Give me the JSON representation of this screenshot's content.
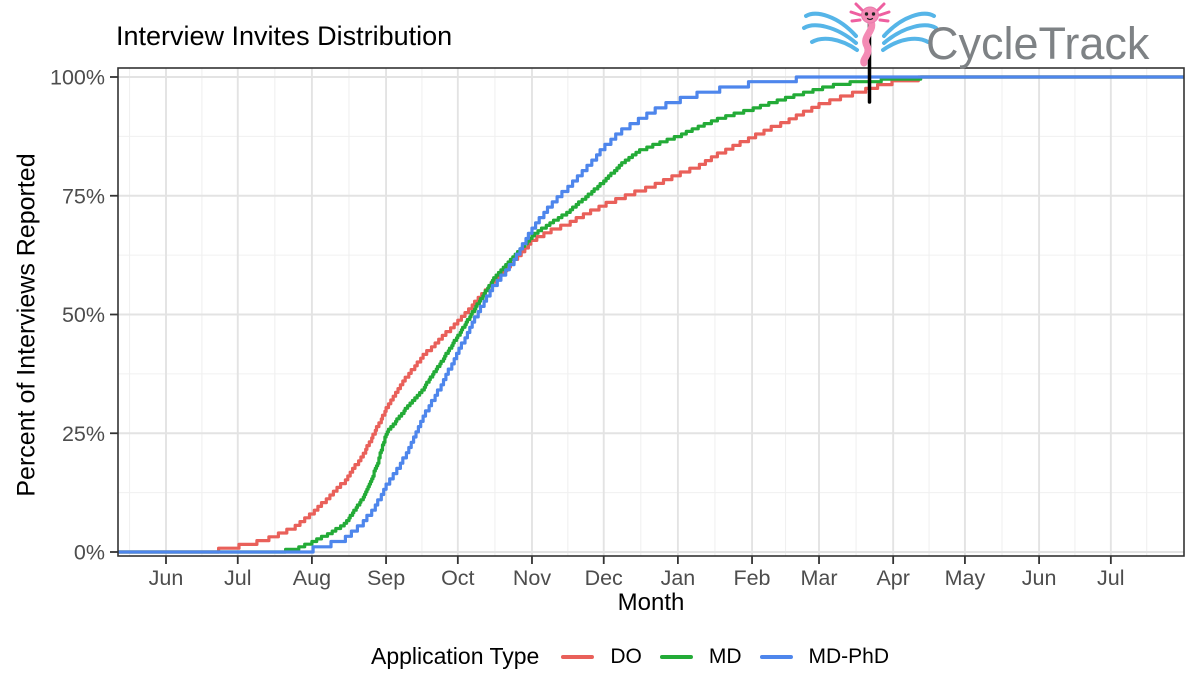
{
  "title": "Interview Invites Distribution",
  "logo": {
    "brand": "CycleTrack",
    "mascot": "axolotl-caduceus"
  },
  "chart_data": {
    "type": "line",
    "style": "ecdf-cumulative-step",
    "title": "Interview Invites Distribution",
    "xlabel": "Month",
    "ylabel": "Percent of Interviews Reported",
    "x_unit": "days_since_Jun_1",
    "x_ticks": [
      "Jun",
      "Jul",
      "Aug",
      "Sep",
      "Oct",
      "Nov",
      "Dec",
      "Jan",
      "Feb",
      "Mar",
      "Apr",
      "May",
      "Jun",
      "Jul"
    ],
    "x_tick_days": [
      0,
      30,
      61,
      92,
      122,
      153,
      183,
      214,
      245,
      273,
      304,
      334,
      365,
      395
    ],
    "y_ticks": [
      "0%",
      "25%",
      "50%",
      "75%",
      "100%"
    ],
    "y_tick_values": [
      0,
      25,
      50,
      75,
      100
    ],
    "ylim": [
      0,
      100
    ],
    "xlim_days": [
      -20,
      426
    ],
    "grid": {
      "major": true,
      "minor": true
    },
    "legend": {
      "title": "Application Type",
      "position": "bottom"
    },
    "series": [
      {
        "name": "DO",
        "color": "#E9605A",
        "step_pct": 0.8,
        "points": [
          [
            -20,
            0
          ],
          [
            18,
            0
          ],
          [
            22,
            0.4
          ],
          [
            26,
            0.8
          ],
          [
            30,
            1.2
          ],
          [
            38,
            2
          ],
          [
            45,
            3.2
          ],
          [
            53,
            5
          ],
          [
            61,
            8
          ],
          [
            68,
            11.5
          ],
          [
            75,
            15
          ],
          [
            83,
            21
          ],
          [
            92,
            30
          ],
          [
            100,
            36.5
          ],
          [
            107,
            41
          ],
          [
            115,
            45
          ],
          [
            122,
            48.5
          ],
          [
            130,
            53
          ],
          [
            137,
            57
          ],
          [
            145,
            61
          ],
          [
            153,
            65.5
          ],
          [
            160,
            67.5
          ],
          [
            168,
            69
          ],
          [
            175,
            71
          ],
          [
            183,
            73
          ],
          [
            190,
            74.5
          ],
          [
            198,
            76
          ],
          [
            206,
            77.5
          ],
          [
            214,
            79.5
          ],
          [
            222,
            81
          ],
          [
            230,
            83.5
          ],
          [
            238,
            85.5
          ],
          [
            245,
            87.3
          ],
          [
            252,
            89
          ],
          [
            259,
            90.5
          ],
          [
            266,
            92.3
          ],
          [
            273,
            94
          ],
          [
            280,
            95.3
          ],
          [
            288,
            96.6
          ],
          [
            296,
            97.8
          ],
          [
            304,
            98.9
          ],
          [
            312,
            99.5
          ],
          [
            322,
            100
          ],
          [
            426,
            100
          ]
        ]
      },
      {
        "name": "MD",
        "color": "#23AB37",
        "step_pct": 0.55,
        "points": [
          [
            -20,
            0
          ],
          [
            44,
            0
          ],
          [
            50,
            0.3
          ],
          [
            55,
            0.8
          ],
          [
            61,
            2
          ],
          [
            68,
            3.8
          ],
          [
            75,
            6
          ],
          [
            83,
            12
          ],
          [
            88,
            18
          ],
          [
            92,
            25
          ],
          [
            100,
            30
          ],
          [
            107,
            34
          ],
          [
            115,
            40
          ],
          [
            122,
            45.5
          ],
          [
            130,
            52
          ],
          [
            137,
            57.5
          ],
          [
            145,
            62
          ],
          [
            153,
            66.5
          ],
          [
            160,
            69
          ],
          [
            168,
            71.5
          ],
          [
            175,
            74.5
          ],
          [
            183,
            78
          ],
          [
            190,
            81.5
          ],
          [
            198,
            84.5
          ],
          [
            206,
            86
          ],
          [
            214,
            87.5
          ],
          [
            222,
            89.3
          ],
          [
            230,
            91
          ],
          [
            238,
            92.2
          ],
          [
            245,
            93.2
          ],
          [
            252,
            94.4
          ],
          [
            259,
            95.5
          ],
          [
            266,
            96.5
          ],
          [
            273,
            97.5
          ],
          [
            280,
            98.3
          ],
          [
            288,
            98.9
          ],
          [
            296,
            99.2
          ],
          [
            304,
            99.4
          ],
          [
            312,
            99.7
          ],
          [
            320,
            100
          ],
          [
            426,
            100
          ]
        ]
      },
      {
        "name": "MD-PhD",
        "color": "#4E86EC",
        "step_pct": 1.1,
        "points": [
          [
            -20,
            0
          ],
          [
            58,
            0
          ],
          [
            61,
            0.5
          ],
          [
            68,
            1.5
          ],
          [
            75,
            2.8
          ],
          [
            83,
            6.5
          ],
          [
            88,
            10
          ],
          [
            92,
            14
          ],
          [
            100,
            20
          ],
          [
            107,
            28
          ],
          [
            115,
            35
          ],
          [
            122,
            42
          ],
          [
            130,
            50
          ],
          [
            137,
            56
          ],
          [
            145,
            61
          ],
          [
            153,
            68
          ],
          [
            160,
            72.5
          ],
          [
            168,
            76.7
          ],
          [
            175,
            80.5
          ],
          [
            183,
            85
          ],
          [
            190,
            88.5
          ],
          [
            198,
            91
          ],
          [
            206,
            93.5
          ],
          [
            214,
            95
          ],
          [
            222,
            96.3
          ],
          [
            230,
            97.2
          ],
          [
            238,
            98
          ],
          [
            245,
            98.6
          ],
          [
            252,
            99
          ],
          [
            259,
            99.3
          ],
          [
            266,
            99.7
          ],
          [
            273,
            100
          ],
          [
            426,
            100
          ]
        ]
      }
    ]
  },
  "theme": {
    "panel_border": "#333333",
    "grid_major": "#E3E3E3",
    "grid_minor": "#F0F0F0",
    "tick_text": "#4D4D4D",
    "brand_text": "#7E8285",
    "staff_black": "#000000",
    "wing_blue": "#56B5E8",
    "axolotl_pink": "#F48BB5",
    "axolotl_dark_pink": "#EE5FA0"
  }
}
